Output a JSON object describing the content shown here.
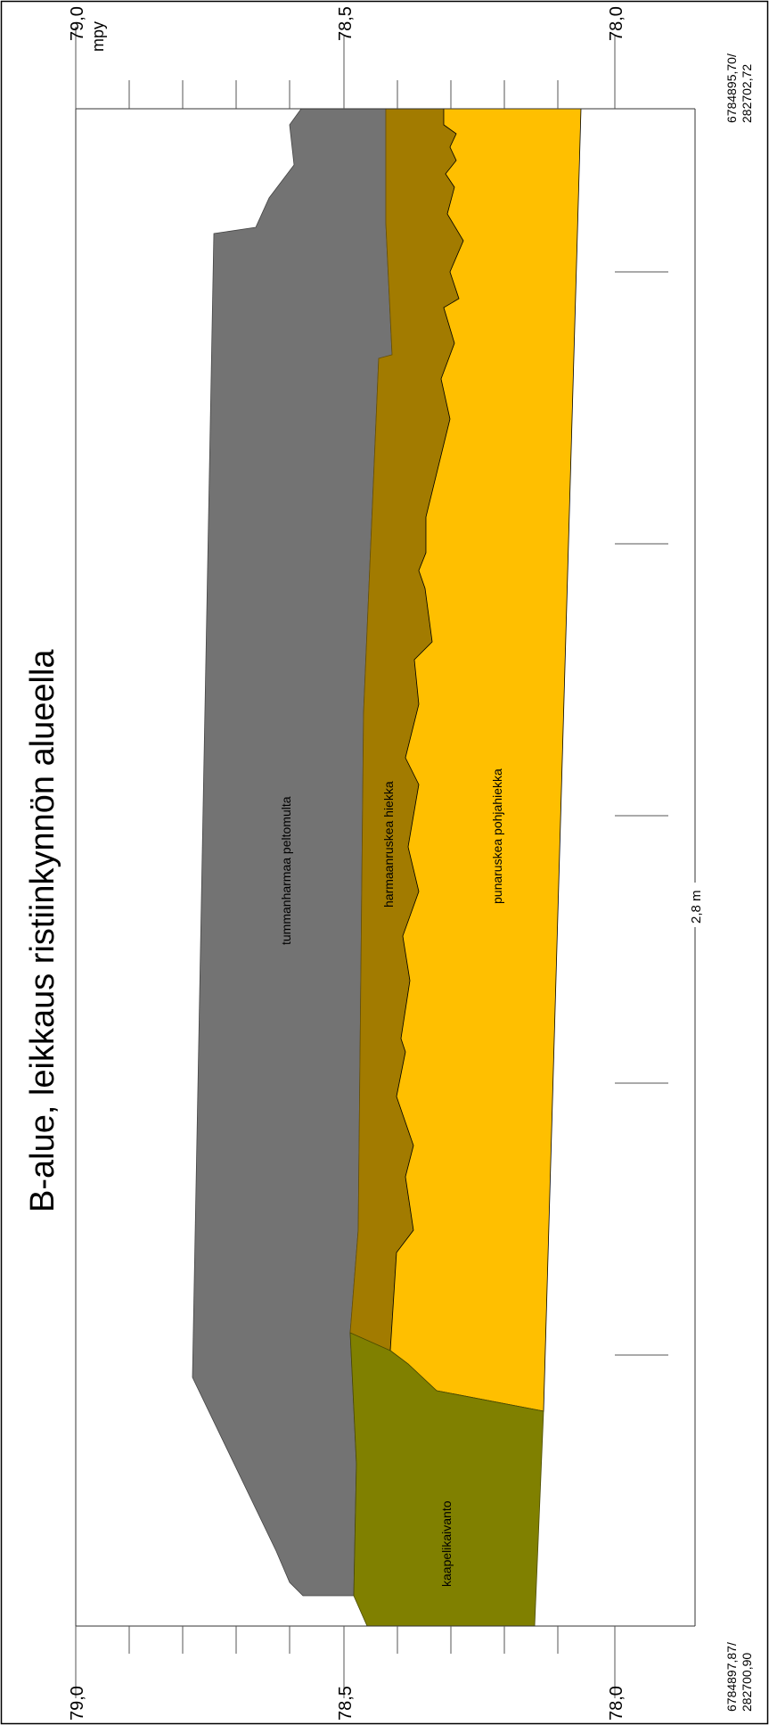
{
  "title": "B-alue, leikkaus ristiinkynnön alueella",
  "elevation_axis": {
    "unit": "mpy",
    "top_labels": [
      "79,0",
      "78,5",
      "78,0"
    ],
    "bottom_labels": [
      "79,0",
      "78,5",
      "78,0"
    ]
  },
  "length_label": "2,8 m",
  "coordinates": {
    "top_line1": "6784895,70/",
    "top_line2": "282702,72",
    "bottom_line1": "6784897,87/",
    "bottom_line2": "282700,90"
  },
  "layers": [
    {
      "label": "tummanharmaa peltomulta",
      "color": "#737373"
    },
    {
      "label": "harmaanruskea hiekka",
      "color": "#A27B00"
    },
    {
      "label": "punaruskea pohjahiekka",
      "color": "#FFBF00"
    },
    {
      "label": "kaapelikaivanto",
      "color": "#808000"
    }
  ],
  "colors": {
    "frame": "#000000",
    "axis": "#333333"
  }
}
